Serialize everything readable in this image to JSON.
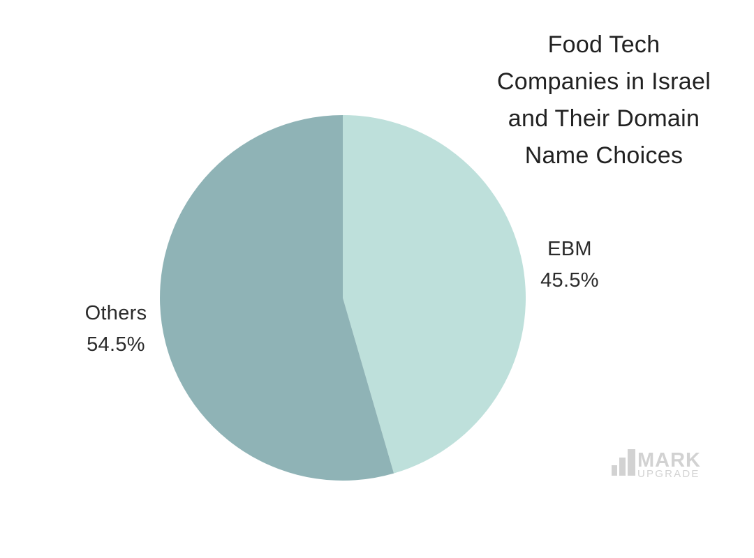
{
  "chart_data": {
    "type": "pie",
    "title": "Food Tech Companies in Israel and Their Domain Name Choices",
    "title_lines": [
      "Food Tech",
      "Companies in Israel",
      "and Their Domain",
      "Name Choices"
    ],
    "categories": [
      "EBM",
      "Others"
    ],
    "values": [
      45.5,
      54.5
    ],
    "unit": "%",
    "colors": [
      "#bee0db",
      "#8fb3b6"
    ],
    "start_angle_deg": 0,
    "direction": "clockwise",
    "legend": "none",
    "slice_labels": [
      {
        "name": "EBM",
        "value": "45.5%"
      },
      {
        "name": "Others",
        "value": "54.5%"
      }
    ]
  },
  "watermark": {
    "brand_line1": "MARK",
    "brand_line2": "UPGRADE",
    "icon": "bar-chart-icon",
    "color": "#d2d2d2"
  }
}
